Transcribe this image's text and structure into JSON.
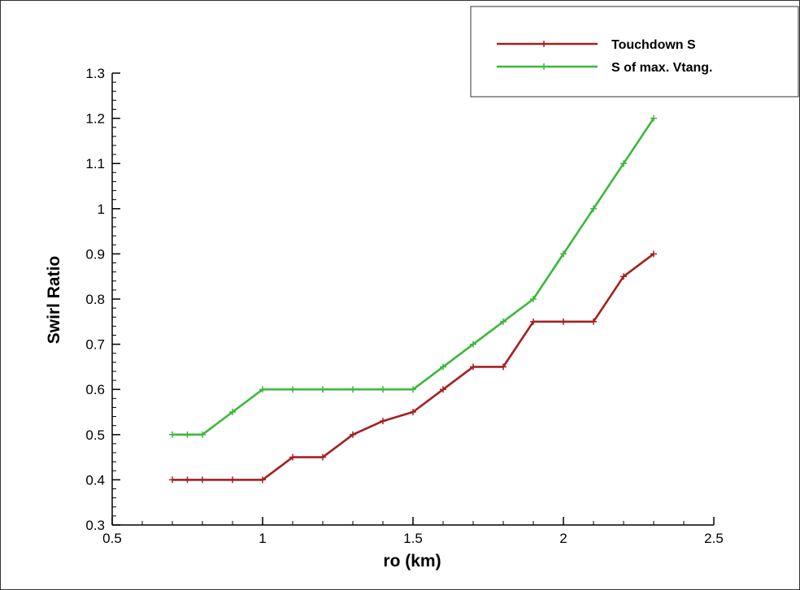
{
  "chart_data": {
    "type": "line",
    "title": "",
    "xlabel": "ro (km)",
    "ylabel": "Swirl Ratio",
    "xlim": [
      0.5,
      2.5
    ],
    "ylim": [
      0.3,
      1.3
    ],
    "x_ticks": [
      0.5,
      1,
      1.5,
      2,
      2.5
    ],
    "x_tick_labels": [
      "0.5",
      "1",
      "1.5",
      "2",
      "2.5"
    ],
    "y_ticks": [
      0.3,
      0.4,
      0.5,
      0.6,
      0.7,
      0.8,
      0.9,
      1,
      1.1,
      1.2,
      1.3
    ],
    "y_tick_labels": [
      "0.3",
      "0.4",
      "0.5",
      "0.6",
      "0.7",
      "0.8",
      "0.9",
      "1",
      "1.1",
      "1.2",
      "1.3"
    ],
    "grid": false,
    "legend_position": "top-right",
    "series": [
      {
        "name": "Touchdown S",
        "color": "#a52020",
        "x": [
          0.7,
          0.75,
          0.8,
          0.9,
          1.0,
          1.1,
          1.2,
          1.3,
          1.4,
          1.5,
          1.6,
          1.7,
          1.8,
          1.9,
          2.0,
          2.1,
          2.2,
          2.3
        ],
        "y": [
          0.4,
          0.4,
          0.4,
          0.4,
          0.4,
          0.45,
          0.45,
          0.5,
          0.53,
          0.55,
          0.6,
          0.65,
          0.65,
          0.75,
          0.75,
          0.75,
          0.85,
          0.9
        ]
      },
      {
        "name": "S of max. Vtang.",
        "color": "#3cb83c",
        "x": [
          0.7,
          0.75,
          0.8,
          0.9,
          1.0,
          1.1,
          1.2,
          1.3,
          1.4,
          1.5,
          1.6,
          1.7,
          1.8,
          1.9,
          2.0,
          2.1,
          2.2,
          2.3
        ],
        "y": [
          0.5,
          0.5,
          0.5,
          0.55,
          0.6,
          0.6,
          0.6,
          0.6,
          0.6,
          0.6,
          0.65,
          0.7,
          0.75,
          0.8,
          0.9,
          1.0,
          1.1,
          1.2
        ]
      }
    ]
  }
}
